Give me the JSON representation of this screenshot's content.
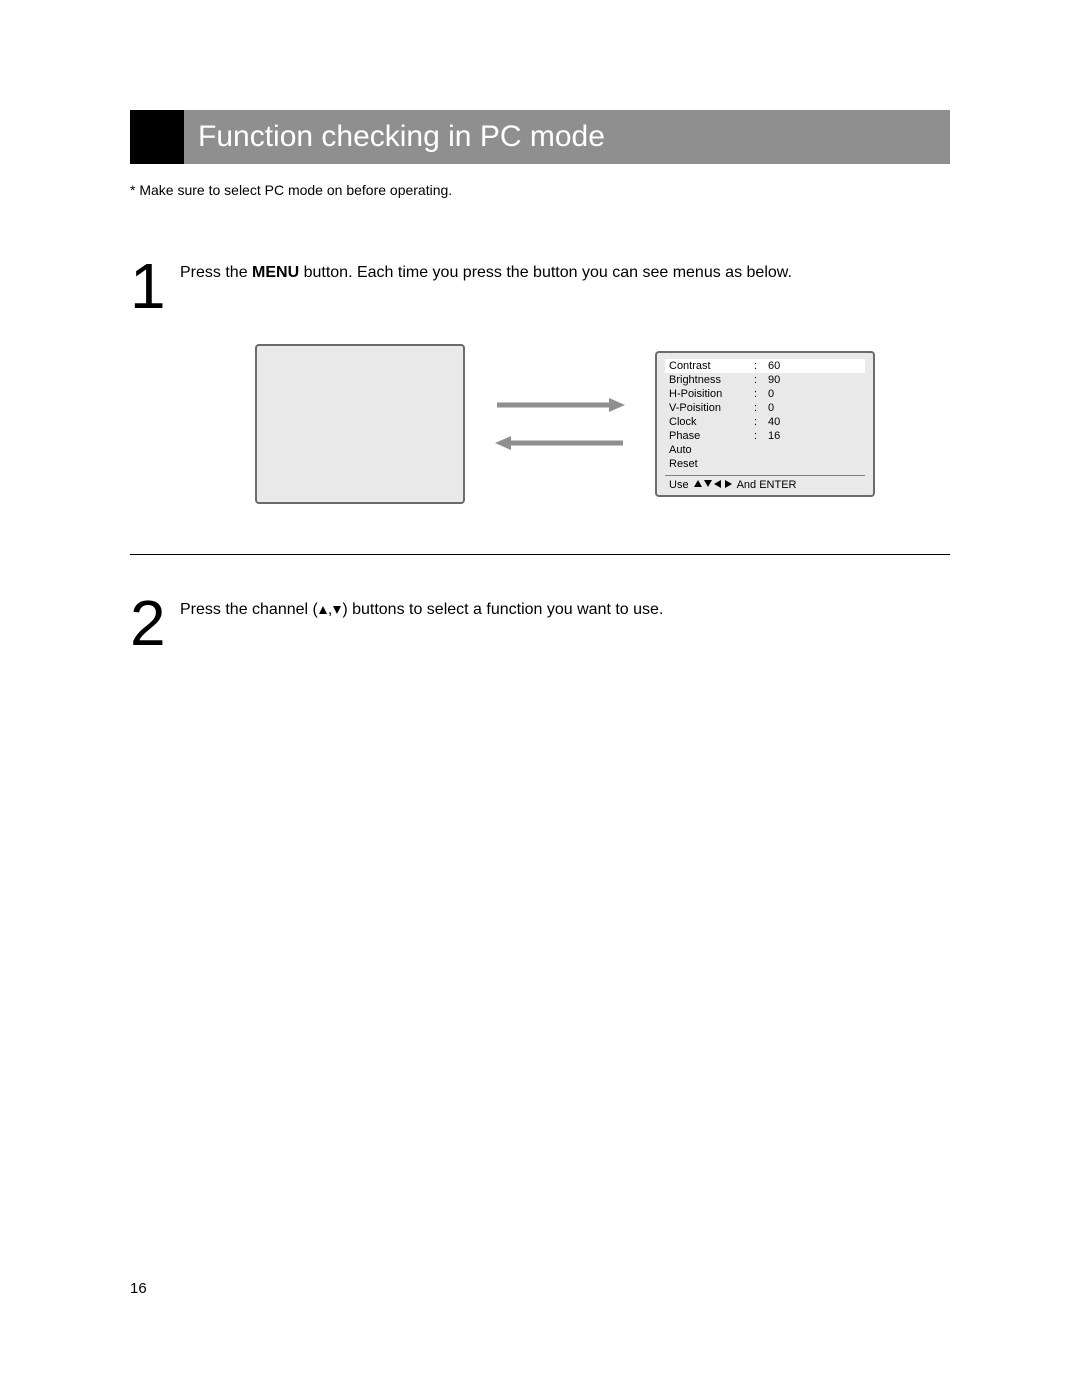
{
  "title": "Function checking in PC mode",
  "note": "* Make sure to select PC mode on before operating.",
  "steps": {
    "s1": {
      "num": "1",
      "pre": "Press the ",
      "bold": "MENU",
      "post": " button. Each time you press the button you can see menus as below."
    },
    "s2": {
      "num": "2",
      "pre": "Press the channel (",
      "post": ") buttons to select a function you want to use."
    }
  },
  "menu": {
    "rows": [
      {
        "label": "Contrast",
        "value": "60",
        "selected": true
      },
      {
        "label": "Brightness",
        "value": "90",
        "selected": false
      },
      {
        "label": "H-Poisition",
        "value": "0",
        "selected": false
      },
      {
        "label": "V-Poisition",
        "value": "0",
        "selected": false
      },
      {
        "label": "Clock",
        "value": "40",
        "selected": false
      },
      {
        "label": "Phase",
        "value": "16",
        "selected": false
      },
      {
        "label": "Auto",
        "value": "",
        "selected": false
      },
      {
        "label": "Reset",
        "value": "",
        "selected": false
      }
    ],
    "footer_use": "Use",
    "footer_enter": "And ENTER"
  },
  "page_number": "16",
  "colors": {
    "title_bg": "#8f8f8f",
    "screen_bg": "#e9e9e9",
    "screen_border": "#6b6b6b",
    "arrow": "#8f8f8f"
  }
}
